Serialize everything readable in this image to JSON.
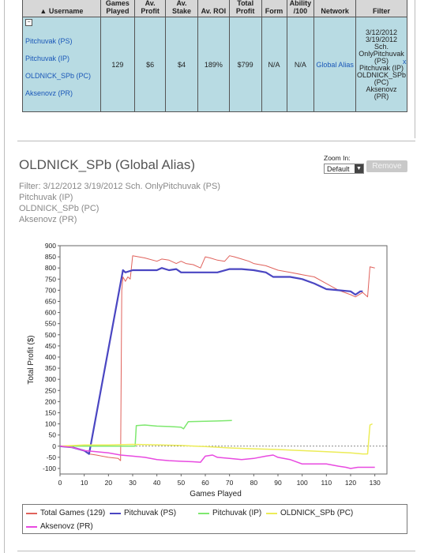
{
  "table": {
    "headers": [
      {
        "name": "username",
        "label": "Username",
        "icon": "sort-up-arrow-icon"
      },
      {
        "name": "games-played",
        "label": "Games Played"
      },
      {
        "name": "av-profit",
        "label": "Av. Profit"
      },
      {
        "name": "av-stake",
        "label": "Av. Stake"
      },
      {
        "name": "av-roi",
        "label": "Av. ROI"
      },
      {
        "name": "total-profit",
        "label": "Total Profit"
      },
      {
        "name": "form",
        "label": "Form"
      },
      {
        "name": "ability",
        "label": "Ability /100"
      },
      {
        "name": "network",
        "label": "Network"
      },
      {
        "name": "filter",
        "label": "Filter"
      }
    ],
    "toggle": "−",
    "names": [
      "Pitchuvak (PS)",
      "Pitchuvak (IP)",
      "OLDNICK_SPb (PC)",
      "Aksenovz (PR)"
    ],
    "games_played": "129",
    "av_profit": "$6",
    "av_stake": "$4",
    "av_roi": "189%",
    "total_profit": "$799",
    "form": "N/A",
    "ability": "N/A",
    "network": "Global Alias",
    "filter_lines": [
      "3/12/2012",
      "3/19/2012",
      "Sch.",
      "OnlyPitchuvak",
      "(PS)",
      "Pitchuvak (IP)",
      "OLDNICK_SPb",
      "(PC)",
      "Aksenovz",
      "(PR)"
    ],
    "remove_x": "x"
  },
  "section": {
    "title": "OLDNICK_SPb (Global Alias)",
    "zoom_label": "Zoom In:",
    "zoom_value": "Default",
    "remove_label": "Remove",
    "filter_lines": [
      "Filter: 3/12/2012 3/19/2012 Sch. OnlyPitchuvak (PS)",
      "Pitchuvak (IP)",
      "OLDNICK_SPb (PC)",
      "Aksenovz (PR)"
    ]
  },
  "chart_data": {
    "type": "line",
    "xlabel": "Games Played",
    "ylabel": "Total Profit ($)",
    "xlim": [
      0,
      135
    ],
    "ylim": [
      -125,
      900
    ],
    "xticks": [
      0,
      10,
      20,
      30,
      40,
      50,
      60,
      70,
      80,
      90,
      100,
      110,
      120,
      130
    ],
    "yticks": [
      -100,
      -50,
      0,
      50,
      100,
      150,
      200,
      250,
      300,
      350,
      400,
      450,
      500,
      550,
      600,
      650,
      700,
      750,
      800,
      850,
      900
    ],
    "series": [
      {
        "name": "Total Games (129)",
        "color": "#e0625c",
        "width": 1,
        "points": [
          [
            0,
            0
          ],
          [
            5,
            -5
          ],
          [
            10,
            -20
          ],
          [
            12,
            -35
          ],
          [
            15,
            -40
          ],
          [
            20,
            -50
          ],
          [
            24,
            -55
          ],
          [
            25,
            -65
          ],
          [
            25.5,
            700
          ],
          [
            26,
            760
          ],
          [
            27,
            740
          ],
          [
            28,
            760
          ],
          [
            29,
            750
          ],
          [
            30,
            855
          ],
          [
            35,
            845
          ],
          [
            40,
            830
          ],
          [
            42,
            840
          ],
          [
            45,
            835
          ],
          [
            48,
            820
          ],
          [
            50,
            830
          ],
          [
            52,
            820
          ],
          [
            55,
            815
          ],
          [
            58,
            800
          ],
          [
            60,
            850
          ],
          [
            62,
            845
          ],
          [
            65,
            835
          ],
          [
            68,
            830
          ],
          [
            70,
            855
          ],
          [
            72,
            850
          ],
          [
            75,
            840
          ],
          [
            78,
            830
          ],
          [
            80,
            820
          ],
          [
            85,
            810
          ],
          [
            90,
            790
          ],
          [
            95,
            780
          ],
          [
            100,
            770
          ],
          [
            105,
            760
          ],
          [
            110,
            730
          ],
          [
            115,
            700
          ],
          [
            120,
            680
          ],
          [
            122,
            670
          ],
          [
            125,
            690
          ],
          [
            127,
            670
          ],
          [
            128,
            805
          ],
          [
            130,
            800
          ]
        ]
      },
      {
        "name": "Pitchuvak (PS)",
        "color": "#4a46c2",
        "width": 2.2,
        "points": [
          [
            0,
            0
          ],
          [
            5,
            -5
          ],
          [
            10,
            -20
          ],
          [
            12,
            -35
          ],
          [
            26,
            790
          ],
          [
            27,
            780
          ],
          [
            30,
            790
          ],
          [
            35,
            790
          ],
          [
            40,
            790
          ],
          [
            42,
            800
          ],
          [
            45,
            790
          ],
          [
            48,
            795
          ],
          [
            50,
            780
          ],
          [
            55,
            780
          ],
          [
            60,
            780
          ],
          [
            65,
            780
          ],
          [
            70,
            795
          ],
          [
            75,
            795
          ],
          [
            80,
            790
          ],
          [
            85,
            780
          ],
          [
            88,
            760
          ],
          [
            95,
            760
          ],
          [
            100,
            750
          ],
          [
            105,
            730
          ],
          [
            110,
            705
          ],
          [
            115,
            700
          ],
          [
            120,
            695
          ],
          [
            122,
            680
          ],
          [
            124,
            695
          ],
          [
            125,
            695
          ]
        ]
      },
      {
        "name": "Pitchuvak (IP)",
        "color": "#7ee86f",
        "width": 1.5,
        "points": [
          [
            0,
            0
          ],
          [
            10,
            0
          ],
          [
            28,
            0
          ],
          [
            31,
            0
          ],
          [
            31.5,
            92
          ],
          [
            35,
            95
          ],
          [
            40,
            90
          ],
          [
            45,
            88
          ],
          [
            50,
            85
          ],
          [
            51,
            78
          ],
          [
            53,
            110
          ],
          [
            60,
            112
          ],
          [
            65,
            113
          ],
          [
            71,
            115
          ]
        ]
      },
      {
        "name": "OLDNICK_SPb (PC)",
        "color": "#ecec57",
        "width": 1.5,
        "points": [
          [
            0,
            0
          ],
          [
            10,
            5
          ],
          [
            20,
            5
          ],
          [
            30,
            8
          ],
          [
            40,
            6
          ],
          [
            50,
            3
          ],
          [
            60,
            -2
          ],
          [
            70,
            -8
          ],
          [
            80,
            -12
          ],
          [
            90,
            -15
          ],
          [
            100,
            -20
          ],
          [
            110,
            -25
          ],
          [
            120,
            -30
          ],
          [
            125,
            -35
          ],
          [
            127,
            -35
          ],
          [
            128,
            95
          ],
          [
            129,
            100
          ]
        ]
      },
      {
        "name": "Aksenovz (PR)",
        "color": "#e84ae0",
        "width": 1.5,
        "points": [
          [
            0,
            0
          ],
          [
            5,
            -5
          ],
          [
            10,
            -20
          ],
          [
            15,
            -25
          ],
          [
            20,
            -30
          ],
          [
            25,
            -40
          ],
          [
            30,
            -45
          ],
          [
            35,
            -50
          ],
          [
            40,
            -60
          ],
          [
            45,
            -65
          ],
          [
            50,
            -68
          ],
          [
            55,
            -70
          ],
          [
            58,
            -72
          ],
          [
            60,
            -45
          ],
          [
            63,
            -40
          ],
          [
            65,
            -50
          ],
          [
            70,
            -55
          ],
          [
            75,
            -60
          ],
          [
            80,
            -55
          ],
          [
            85,
            -45
          ],
          [
            88,
            -40
          ],
          [
            90,
            -50
          ],
          [
            95,
            -60
          ],
          [
            100,
            -80
          ],
          [
            105,
            -80
          ],
          [
            110,
            -80
          ],
          [
            115,
            -90
          ],
          [
            118,
            -95
          ],
          [
            120,
            -100
          ],
          [
            123,
            -95
          ],
          [
            125,
            -95
          ],
          [
            130,
            -95
          ]
        ]
      }
    ],
    "legend_position": "bottom"
  }
}
